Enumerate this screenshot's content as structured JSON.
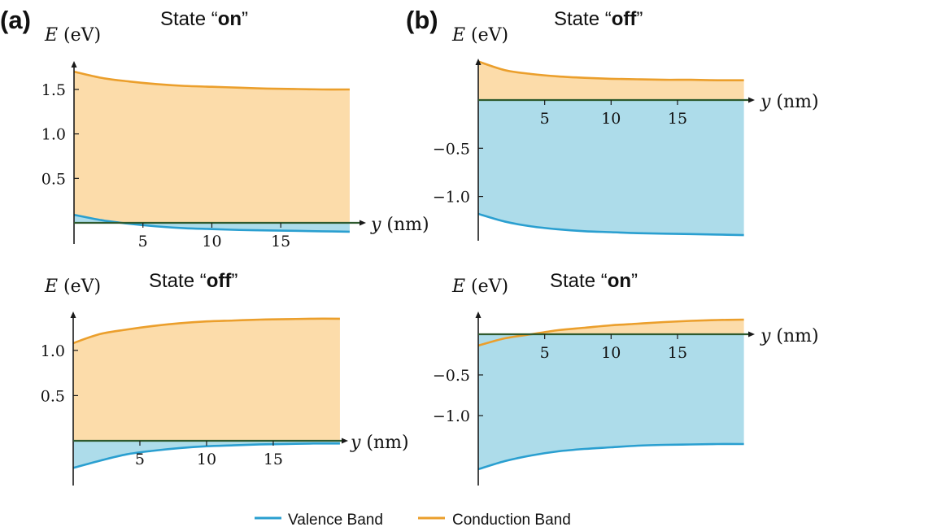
{
  "figure": {
    "legend": [
      {
        "label": "Valence Band",
        "color": "#2a9fd0"
      },
      {
        "label": "Conduction Band",
        "color": "#eb9f2c"
      }
    ],
    "colors": {
      "valence_fill": "#addcea",
      "conduction_fill": "#fcdcaa",
      "valence_line": "#2a9fd0",
      "conduction_line": "#eb9f2c",
      "axis": "#1a1a1a",
      "zero_line": "#2e5a2e"
    }
  },
  "chart_data": [
    {
      "type": "area",
      "panel": "(a)",
      "position": "top-left",
      "title_prefix": "State “",
      "title_bold": "on",
      "title_suffix": "”",
      "xlabel": "y (nm)",
      "ylabel": "E (eV)",
      "xlim": [
        0,
        20.3
      ],
      "ylim": [
        -0.12,
        1.82
      ],
      "x_ticks": [
        5,
        10,
        15
      ],
      "y_ticks": [
        0.5,
        1.0,
        1.5
      ],
      "x_tick_labels": [
        "5",
        "10",
        "15"
      ],
      "y_tick_labels": [
        "0.5",
        "1.0",
        "1.5"
      ],
      "series": [
        {
          "name": "Valence Band",
          "x": [
            0,
            2,
            4,
            6,
            8,
            10,
            12,
            14,
            16,
            18,
            20
          ],
          "values": [
            0.09,
            0.03,
            -0.01,
            -0.04,
            -0.06,
            -0.07,
            -0.08,
            -0.085,
            -0.09,
            -0.095,
            -0.1
          ]
        },
        {
          "name": "Conduction Band",
          "x": [
            0,
            2,
            4,
            6,
            8,
            10,
            12,
            14,
            16,
            18,
            20
          ],
          "values": [
            1.7,
            1.63,
            1.59,
            1.56,
            1.54,
            1.53,
            1.52,
            1.51,
            1.505,
            1.5,
            1.5
          ]
        }
      ]
    },
    {
      "type": "area",
      "panel": "(a)",
      "position": "bottom-left",
      "title_prefix": "State “",
      "title_bold": "off",
      "title_suffix": "”",
      "xlabel": "y (nm)",
      "ylabel": "E (eV)",
      "xlim": [
        0,
        19.7
      ],
      "ylim": [
        -0.34,
        1.43
      ],
      "x_ticks": [
        5,
        10,
        15
      ],
      "y_ticks": [
        0.5,
        1.0
      ],
      "x_tick_labels": [
        "5",
        "10",
        "15"
      ],
      "y_tick_labels": [
        "0.5",
        "1.0"
      ],
      "series": [
        {
          "name": "Valence Band",
          "x": [
            0,
            2,
            4,
            6,
            8,
            10,
            12,
            14,
            16,
            18,
            20
          ],
          "values": [
            -0.3,
            -0.22,
            -0.15,
            -0.11,
            -0.08,
            -0.06,
            -0.05,
            -0.04,
            -0.035,
            -0.03,
            -0.03
          ]
        },
        {
          "name": "Conduction Band",
          "x": [
            0,
            2,
            4,
            6,
            8,
            10,
            12,
            14,
            16,
            18,
            20
          ],
          "values": [
            1.08,
            1.18,
            1.23,
            1.27,
            1.3,
            1.32,
            1.33,
            1.34,
            1.345,
            1.35,
            1.35
          ]
        }
      ]
    },
    {
      "type": "area",
      "panel": "(b)",
      "position": "top-right",
      "title_prefix": "State “",
      "title_bold": "off",
      "title_suffix": "”",
      "xlabel": "y (nm)",
      "ylabel": "E (eV)",
      "xlim": [
        0,
        19.9
      ],
      "ylim": [
        -1.52,
        0.43
      ],
      "x_ticks": [
        5,
        10,
        15
      ],
      "y_ticks": [
        -0.5,
        -1.0
      ],
      "x_tick_labels": [
        "5",
        "10",
        "15"
      ],
      "y_tick_labels": [
        "−0.5",
        "−1.0"
      ],
      "series": [
        {
          "name": "Valence Band",
          "x": [
            0,
            2,
            4,
            6,
            8,
            10,
            12,
            14,
            16,
            18,
            20
          ],
          "values": [
            -1.18,
            -1.26,
            -1.31,
            -1.34,
            -1.36,
            -1.37,
            -1.38,
            -1.385,
            -1.39,
            -1.395,
            -1.4
          ]
        },
        {
          "name": "Conduction Band",
          "x": [
            0,
            2,
            4,
            6,
            8,
            10,
            12,
            14,
            16,
            18,
            20
          ],
          "values": [
            0.4,
            0.31,
            0.27,
            0.245,
            0.23,
            0.22,
            0.215,
            0.21,
            0.21,
            0.205,
            0.205
          ]
        }
      ]
    },
    {
      "type": "area",
      "panel": "(b)",
      "position": "bottom-right",
      "title_prefix": "State “",
      "title_bold": "on",
      "title_suffix": "”",
      "xlabel": "y (nm)",
      "ylabel": "E (eV)",
      "xlim": [
        0,
        19.9
      ],
      "ylim": [
        -1.72,
        0.28
      ],
      "x_ticks": [
        5,
        10,
        15
      ],
      "y_ticks": [
        -0.5,
        -1.0
      ],
      "x_tick_labels": [
        "5",
        "10",
        "15"
      ],
      "y_tick_labels": [
        "−0.5",
        "−1.0"
      ],
      "series": [
        {
          "name": "Valence Band",
          "x": [
            0,
            2,
            4,
            6,
            8,
            10,
            12,
            14,
            16,
            18,
            20
          ],
          "values": [
            -1.66,
            -1.56,
            -1.49,
            -1.44,
            -1.41,
            -1.39,
            -1.37,
            -1.36,
            -1.355,
            -1.35,
            -1.35
          ]
        },
        {
          "name": "Conduction Band",
          "x": [
            0,
            2,
            4,
            6,
            8,
            10,
            12,
            14,
            16,
            18,
            20
          ],
          "values": [
            -0.14,
            -0.05,
            0.0,
            0.05,
            0.08,
            0.11,
            0.13,
            0.15,
            0.165,
            0.175,
            0.18
          ]
        }
      ]
    }
  ]
}
